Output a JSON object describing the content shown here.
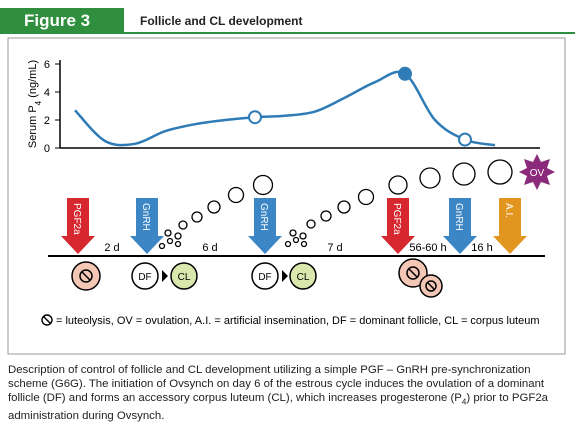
{
  "header": {
    "label": "Figure 3",
    "title": "Follicle and CL development"
  },
  "chart_data": {
    "type": "line",
    "y_label": {
      "text": "Serum P",
      "sub": "4",
      "unit": "(ng/mL)"
    },
    "values": [
      2.7,
      0.5,
      0.3,
      1.2,
      1.7,
      2.0,
      2.2,
      2.3,
      2.6,
      3.6,
      4.7,
      5.3,
      2.0,
      0.6,
      0.2
    ],
    "color": "#2e7bb5",
    "ylim": [
      0,
      6.5
    ],
    "yticks": [
      0,
      2,
      4,
      6
    ]
  },
  "arrows": [
    {
      "label": "PGF2a",
      "color": "#d7282f"
    },
    {
      "label": "GnRH",
      "color": "#3d86c6"
    },
    {
      "label": "GnRH",
      "color": "#3d86c6"
    },
    {
      "label": "PGF2a",
      "color": "#d7282f"
    },
    {
      "label": "GnRH",
      "color": "#3d86c6"
    },
    {
      "label": "A.I.",
      "color": "#e3961f"
    }
  ],
  "intervals": [
    "2 d",
    "6 d",
    "7 d",
    "56-60 h",
    "16 h"
  ],
  "ovulation": "OV",
  "structures": [
    "DF",
    "CL",
    "DF",
    "CL"
  ],
  "legend": "= luteolysis, OV = ovulation, A.I. = artificial insemination, DF = dominant follicle, CL = corpus luteum",
  "caption": {
    "before": "Description of control of follicle and CL development utilizing a simple PGF – GnRH pre-synchronization scheme (G6G). The initiation of Ovsynch on day 6 of the estrous cycle induces the ovulation of a dominant follicle (DF) and forms an accessory corpus luteum (CL), which increases progesterone (P",
    "sub": "4",
    "after": ") prior to PGF2a administration during Ovsynch."
  }
}
